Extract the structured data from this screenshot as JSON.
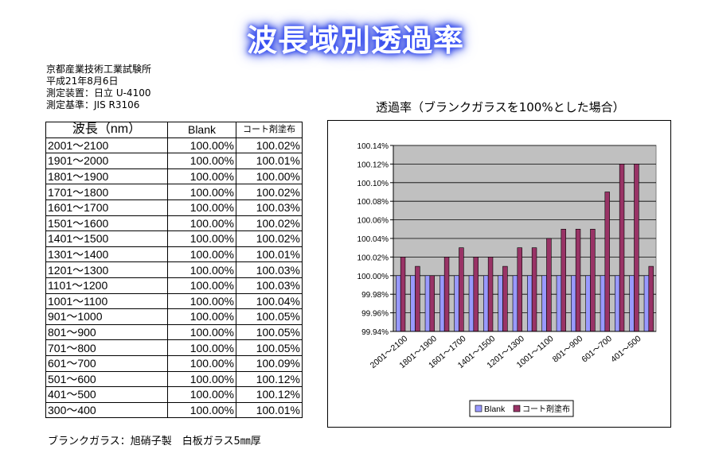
{
  "page": {
    "title": "波長域別透過率",
    "meta": [
      "京都産業技術工業試験所",
      "平成21年8月6日",
      "測定装置：日立 U-4100",
      "測定基準：JIS R3106"
    ],
    "footnote": "ブランクガラス：旭硝子製　白板ガラス5㎜厚"
  },
  "table": {
    "headers": [
      "波長（nm）",
      "Blank",
      "コート剤塗布"
    ],
    "rows": [
      [
        "2001～2100",
        "100.00%",
        "100.02%"
      ],
      [
        "1901～2000",
        "100.00%",
        "100.01%"
      ],
      [
        "1801～1900",
        "100.00%",
        "100.00%"
      ],
      [
        "1701～1800",
        "100.00%",
        "100.02%"
      ],
      [
        "1601～1700",
        "100.00%",
        "100.03%"
      ],
      [
        "1501～1600",
        "100.00%",
        "100.02%"
      ],
      [
        "1401～1500",
        "100.00%",
        "100.02%"
      ],
      [
        "1301～1400",
        "100.00%",
        "100.01%"
      ],
      [
        "1201～1300",
        "100.00%",
        "100.03%"
      ],
      [
        "1101～1200",
        "100.00%",
        "100.03%"
      ],
      [
        "1001～1100",
        "100.00%",
        "100.04%"
      ],
      [
        "901～1000",
        "100.00%",
        "100.05%"
      ],
      [
        "801～900",
        "100.00%",
        "100.05%"
      ],
      [
        "701～800",
        "100.00%",
        "100.05%"
      ],
      [
        "601～700",
        "100.00%",
        "100.09%"
      ],
      [
        "501～600",
        "100.00%",
        "100.12%"
      ],
      [
        "401～500",
        "100.00%",
        "100.12%"
      ],
      [
        "300～400",
        "100.00%",
        "100.01%"
      ]
    ]
  },
  "chart_data": {
    "type": "bar",
    "title": "透過率（ブランクガラスを100%とした場合）",
    "categories": [
      "2001～2100",
      "1901～2000",
      "1801～1900",
      "1701～1800",
      "1601～1700",
      "1501～1600",
      "1401～1500",
      "1301～1400",
      "1201～1300",
      "1101～1200",
      "1001～1100",
      "901～1000",
      "801～900",
      "701～800",
      "601～700",
      "501～600",
      "401～500",
      "300～400"
    ],
    "x_tick_labels": [
      "2001～2100",
      "1801～1900",
      "1601～1700",
      "1401～1500",
      "1201～1300",
      "1001～1100",
      "801～900",
      "601～700",
      "401～500"
    ],
    "y_tick_labels": [
      "100.14%",
      "100.12%",
      "100.10%",
      "100.08%",
      "100.06%",
      "100.04%",
      "100.02%",
      "100.00%",
      "99.98%",
      "99.96%",
      "99.94%"
    ],
    "ylim": [
      99.94,
      100.14
    ],
    "ytick_step": 0.02,
    "baseline": 99.94,
    "grid": true,
    "legend_position": "bottom-center",
    "series": [
      {
        "name": "Blank",
        "color": "#9999ff",
        "values": [
          100.0,
          100.0,
          100.0,
          100.0,
          100.0,
          100.0,
          100.0,
          100.0,
          100.0,
          100.0,
          100.0,
          100.0,
          100.0,
          100.0,
          100.0,
          100.0,
          100.0,
          100.0
        ]
      },
      {
        "name": "コート剤塗布",
        "color": "#993366",
        "values": [
          100.02,
          100.01,
          100.0,
          100.02,
          100.03,
          100.02,
          100.02,
          100.01,
          100.03,
          100.03,
          100.04,
          100.05,
          100.05,
          100.05,
          100.09,
          100.12,
          100.12,
          100.01
        ]
      }
    ],
    "plot_background": "#c0c0c0"
  }
}
